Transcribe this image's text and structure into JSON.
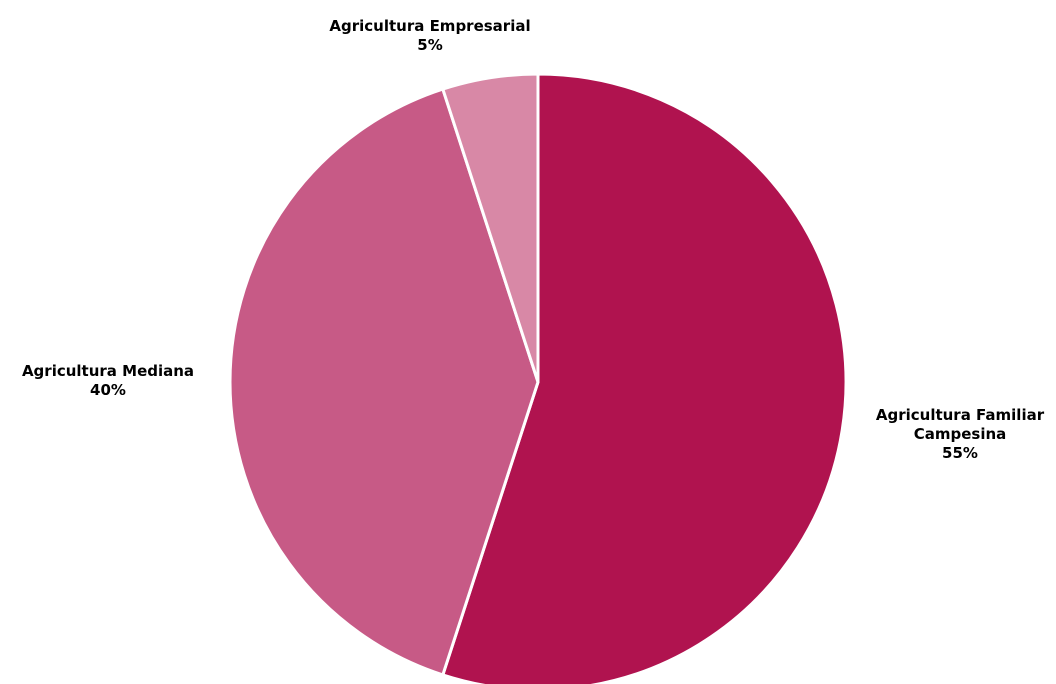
{
  "chart_data": {
    "type": "pie",
    "title": "",
    "slices": [
      {
        "label_lines": [
          "Agricultura Familiar",
          "Campesina"
        ],
        "value": 55,
        "value_label": "55%",
        "color": "#B0134F"
      },
      {
        "label_lines": [
          "Agricultura Mediana"
        ],
        "value": 40,
        "value_label": "40%",
        "color": "#C75A86"
      },
      {
        "label_lines": [
          "Agricultura Empresarial"
        ],
        "value": 5,
        "value_label": "5%",
        "color": "#D888A6"
      }
    ],
    "legend": "none",
    "start_angle": "12 o'clock",
    "direction": "clockwise"
  }
}
